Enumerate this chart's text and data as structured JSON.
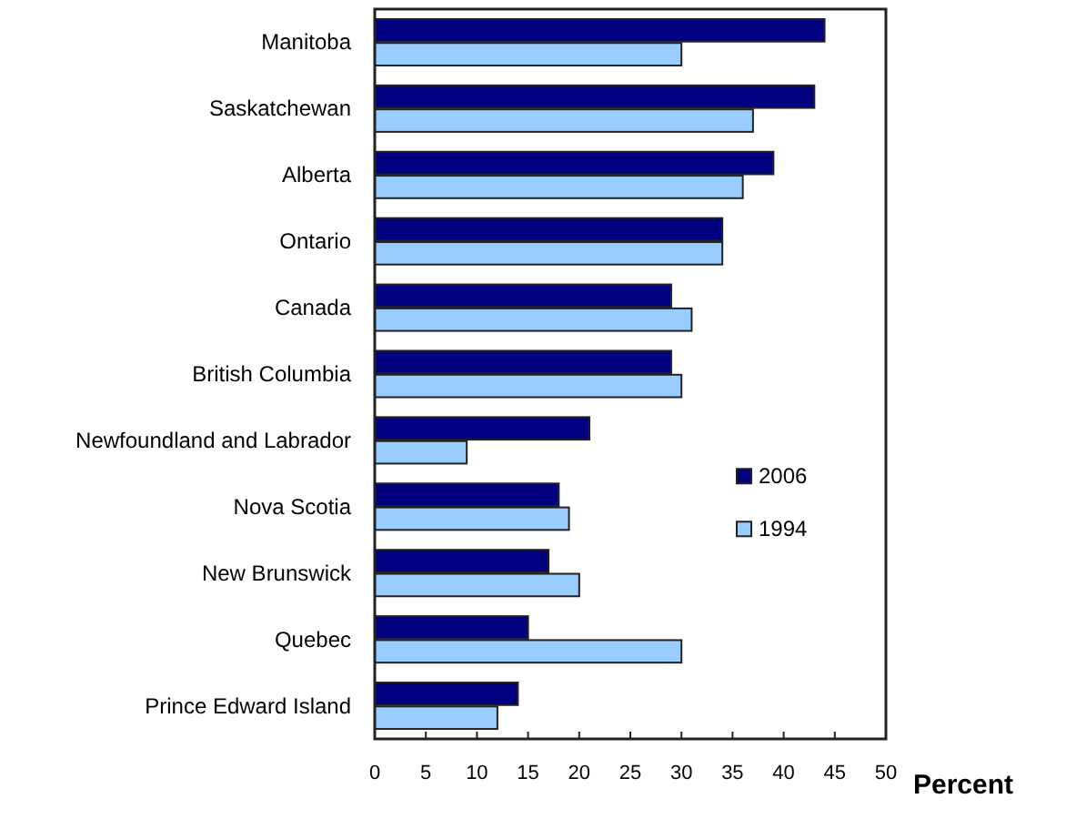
{
  "chart_data": {
    "type": "bar",
    "orientation": "horizontal",
    "xlabel": "Percent",
    "categories": [
      "Manitoba",
      "Saskatchewan",
      "Alberta",
      "Ontario",
      "Canada",
      "British Columbia",
      "Newfoundland and Labrador",
      "Nova Scotia",
      "New Brunswick",
      "Quebec",
      "Prince Edward Island"
    ],
    "series": [
      {
        "name": "2006",
        "color": "#000080",
        "values": [
          44,
          43,
          39,
          34,
          29,
          29,
          21,
          18,
          17,
          15,
          14
        ]
      },
      {
        "name": "1994",
        "color": "#99ccff",
        "values": [
          30,
          37,
          36,
          34,
          31,
          30,
          9,
          19,
          20,
          30,
          12
        ]
      }
    ],
    "xlim": [
      0,
      50
    ],
    "xticks": [
      0,
      5,
      10,
      15,
      20,
      25,
      30,
      35,
      40,
      45,
      50
    ],
    "legend": "right"
  }
}
